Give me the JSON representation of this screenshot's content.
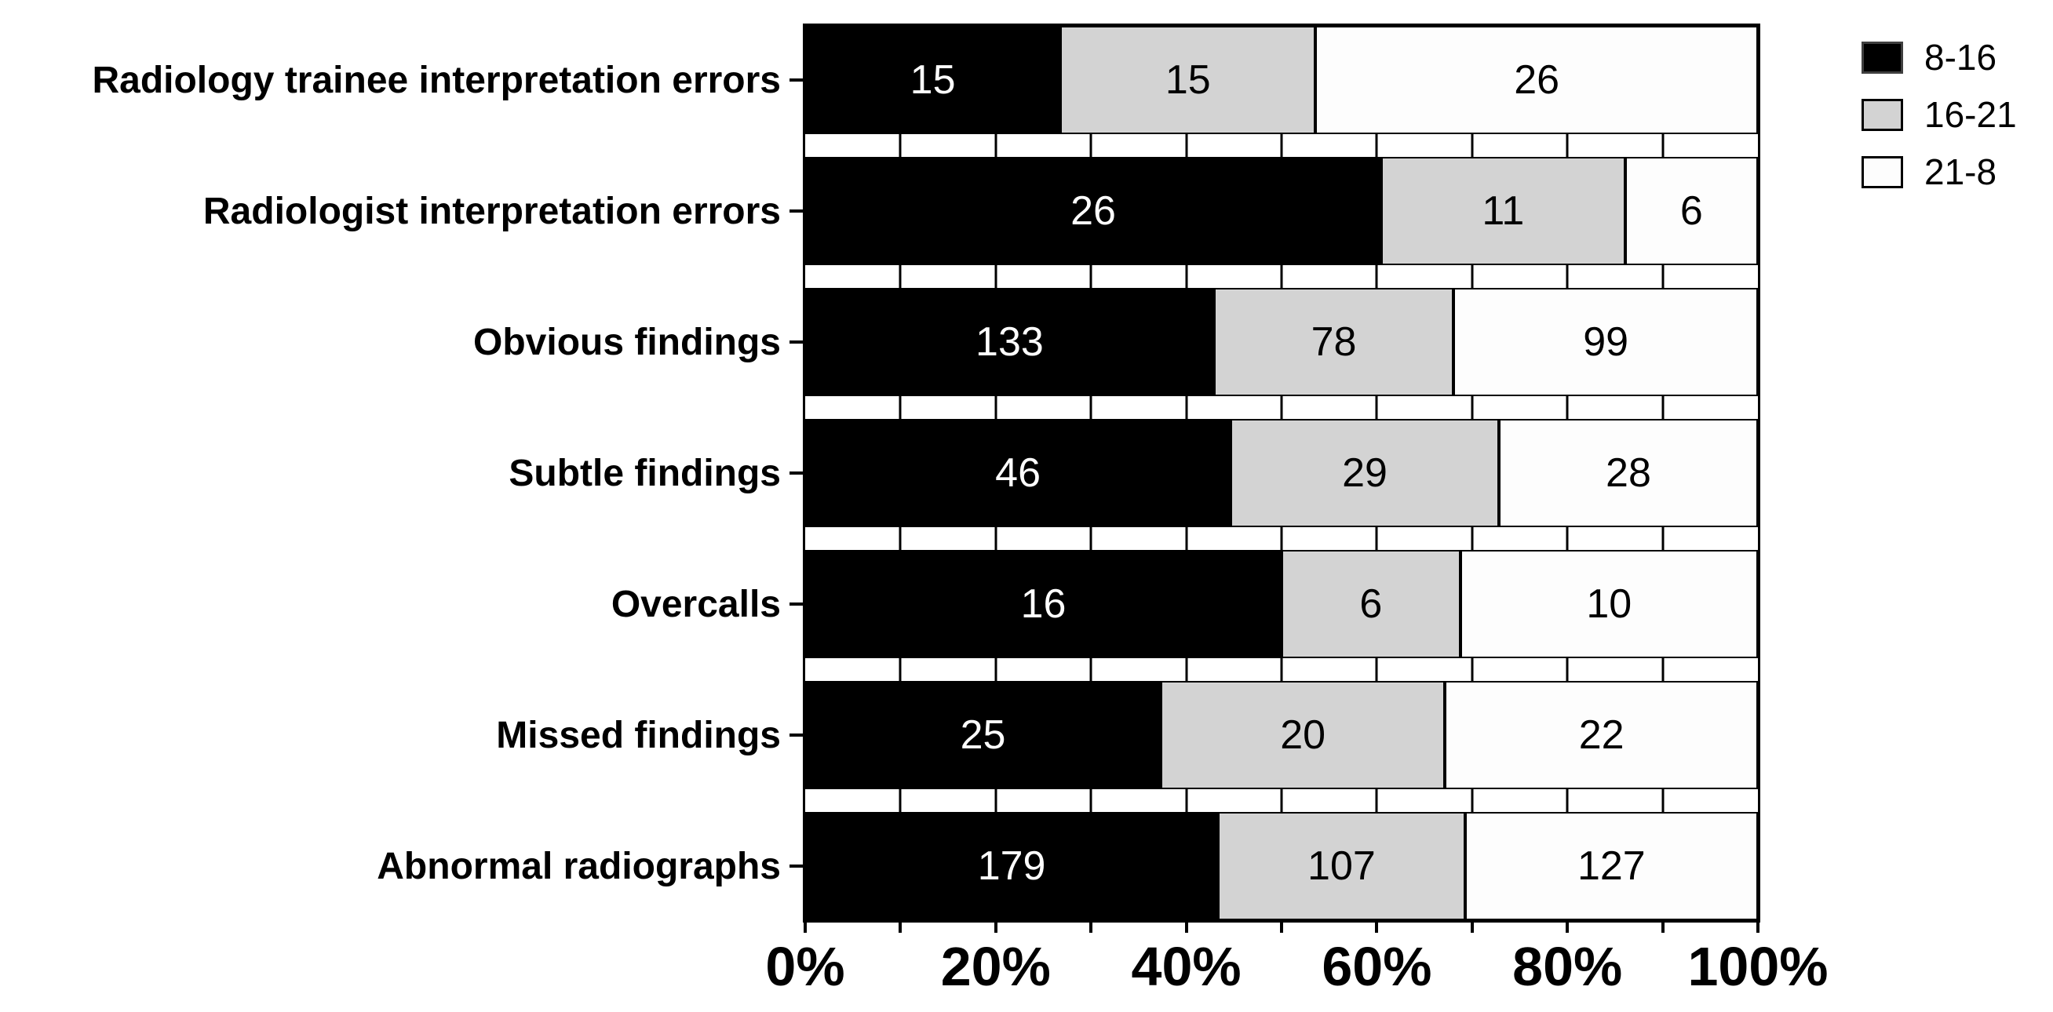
{
  "chart_data": {
    "type": "bar",
    "orientation": "horizontal",
    "stacked": true,
    "percent_scale": true,
    "grid": "vertical gridlines every 10%, visible between bars",
    "legend_position": "top-right",
    "categories": [
      "Radiology trainee interpretation errors",
      "Radiologist interpretation errors",
      "Obvious findings",
      "Subtle findings",
      "Overcalls",
      "Missed findings",
      "Abnormal radiographs"
    ],
    "series": [
      {
        "name": "8-16",
        "color": "#000000",
        "text_color": "#ffffff",
        "swatch_border": "#3f3f3f"
      },
      {
        "name": "16-21",
        "color": "#d3d3d3",
        "text_color": "#000000",
        "swatch_border": "#000000"
      },
      {
        "name": "21-8",
        "color": "#fdfdfd",
        "text_color": "#000000",
        "swatch_border": "#000000"
      }
    ],
    "rows": [
      {
        "label": "Radiology trainee interpretation errors",
        "values": [
          15,
          15,
          26
        ]
      },
      {
        "label": "Radiologist interpretation errors",
        "values": [
          26,
          11,
          6
        ]
      },
      {
        "label": "Obvious findings",
        "values": [
          133,
          78,
          99
        ]
      },
      {
        "label": "Subtle findings",
        "values": [
          46,
          29,
          28
        ]
      },
      {
        "label": "Overcalls",
        "values": [
          16,
          6,
          10
        ]
      },
      {
        "label": "Missed findings",
        "values": [
          25,
          20,
          22
        ]
      },
      {
        "label": "Abnormal radiographs",
        "values": [
          179,
          107,
          127
        ]
      }
    ],
    "xlabel": "",
    "ylabel": "",
    "x_axis": {
      "min": 0,
      "max": 100,
      "tick_step": 10,
      "label_step": 20,
      "tick_labels": [
        "0%",
        "20%",
        "40%",
        "60%",
        "80%",
        "100%"
      ]
    }
  },
  "legend": {
    "entries": [
      {
        "label": "8-16"
      },
      {
        "label": "16-21"
      },
      {
        "label": "21-8"
      }
    ]
  }
}
